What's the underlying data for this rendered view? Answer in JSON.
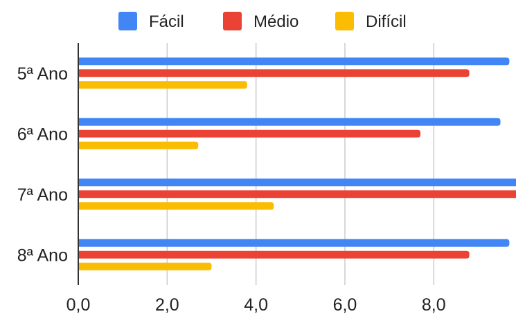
{
  "chart_data": {
    "type": "bar",
    "orientation": "horizontal",
    "categories": [
      "5ª Ano",
      "6ª Ano",
      "7ª Ano",
      "8ª Ano"
    ],
    "series": [
      {
        "name": "Fácil",
        "color": "#4285f4",
        "values": [
          9.7,
          9.5,
          10.0,
          9.7
        ]
      },
      {
        "name": "Médio",
        "color": "#ea4335",
        "values": [
          8.8,
          7.7,
          10.0,
          8.8
        ]
      },
      {
        "name": "Difícil",
        "color": "#fbbc04",
        "values": [
          3.8,
          2.7,
          4.4,
          3.0
        ]
      }
    ],
    "x_ticks": [
      "0,0",
      "2,0",
      "4,0",
      "6,0",
      "8,0"
    ],
    "x_tick_values": [
      0,
      2,
      4,
      6,
      8
    ],
    "xlim": [
      0,
      9.85
    ],
    "grid": true,
    "legend_position": "top"
  }
}
